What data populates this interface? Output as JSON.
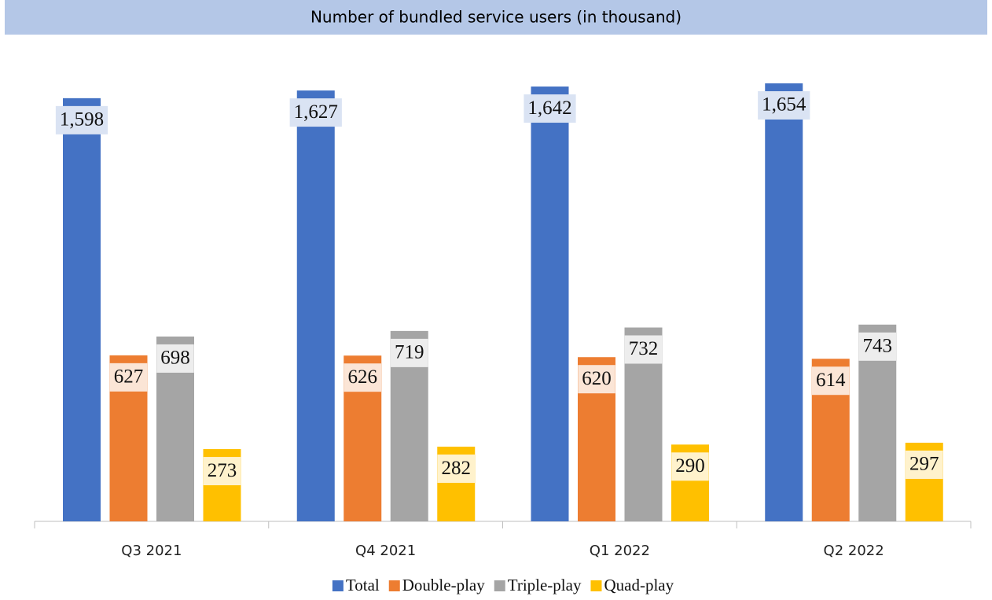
{
  "chart_data": {
    "type": "bar",
    "title": "Number of bundled service users (in thousand)",
    "categories": [
      "Q3 2021",
      "Q4 2021",
      "Q1 2022",
      "Q2 2022"
    ],
    "series": [
      {
        "name": "Total",
        "color": "#4472c4",
        "values": [
          1598,
          1627,
          1642,
          1654
        ],
        "value_labels": [
          "1,598",
          "1,627",
          "1,642",
          "1,654"
        ]
      },
      {
        "name": "Double-play",
        "color": "#ed7d31",
        "values": [
          627,
          626,
          620,
          614
        ]
      },
      {
        "name": "Triple-play",
        "color": "#a5a5a5",
        "values": [
          698,
          719,
          732,
          743
        ]
      },
      {
        "name": "Quad-play",
        "color": "#ffc000",
        "values": [
          273,
          282,
          290,
          297
        ]
      }
    ],
    "legend": "bottom"
  }
}
